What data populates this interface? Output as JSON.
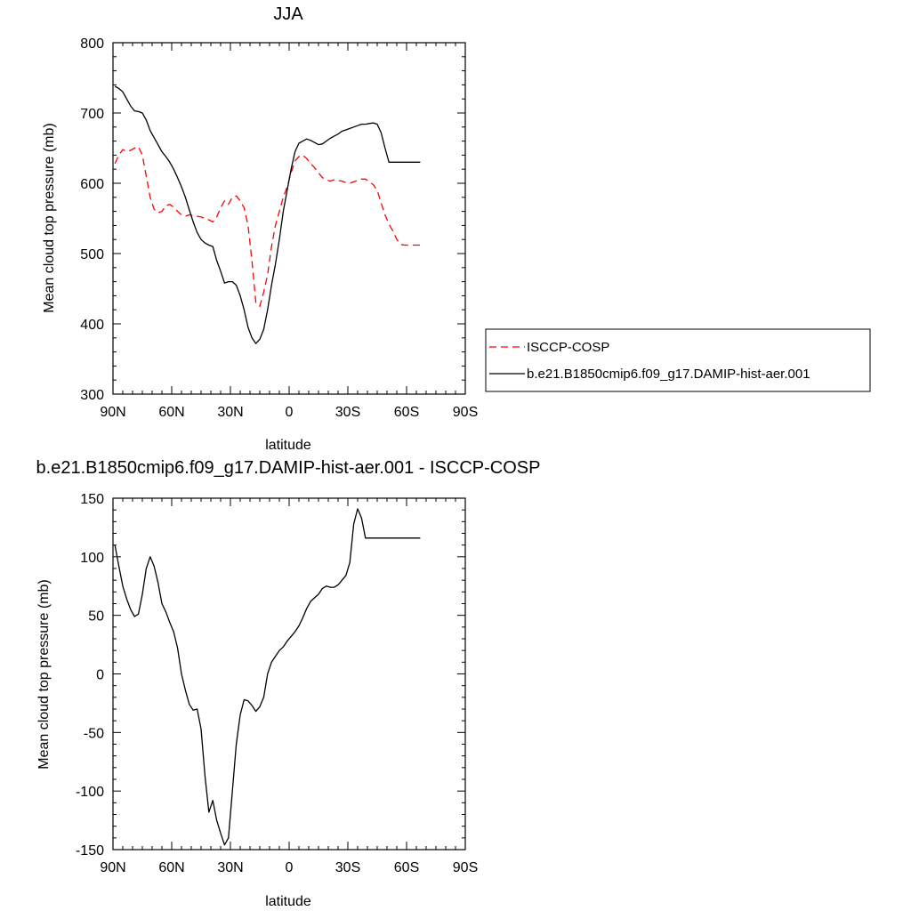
{
  "chart_data": [
    {
      "type": "line",
      "title": "JJA",
      "xlabel": "latitude",
      "ylabel": "Mean cloud top pressure (mb)",
      "xlim": [
        90,
        -90
      ],
      "ylim": [
        300,
        800
      ],
      "x_ticks": [
        90,
        60,
        30,
        0,
        -30,
        -60,
        -90
      ],
      "x_tick_labels": [
        "90N",
        "60N",
        "30N",
        "0",
        "30S",
        "60S",
        "90S"
      ],
      "y_ticks": [
        300,
        400,
        500,
        600,
        700,
        800
      ],
      "y_tick_labels": [
        "300",
        "400",
        "500",
        "600",
        "700",
        "800"
      ],
      "legend_position": "right",
      "series": [
        {
          "name": "ISCCP-COSP",
          "color": "#ff0000",
          "dash": "dashed",
          "x": [
            89,
            87,
            85,
            83,
            81,
            79,
            77,
            75,
            73,
            71,
            69,
            67,
            65,
            63,
            61,
            59,
            57,
            55,
            53,
            51,
            49,
            47,
            45,
            43,
            41,
            39,
            37,
            35,
            33,
            31,
            29,
            27,
            25,
            23,
            21,
            19,
            17,
            15,
            13,
            11,
            9,
            7,
            5,
            3,
            1,
            -1,
            -3,
            -5,
            -7,
            -9,
            -11,
            -13,
            -15,
            -17,
            -19,
            -21,
            -23,
            -25,
            -27,
            -29,
            -31,
            -33,
            -35,
            -37,
            -39,
            -41,
            -43,
            -45,
            -47,
            -49,
            -51,
            -53,
            -55,
            -57,
            -59,
            -61,
            -63,
            -65,
            -67
          ],
          "values": [
            628,
            640,
            648,
            645,
            647,
            650,
            652,
            640,
            610,
            580,
            563,
            558,
            560,
            568,
            570,
            566,
            560,
            555,
            553,
            555,
            554,
            553,
            552,
            550,
            548,
            545,
            552,
            565,
            575,
            570,
            580,
            582,
            575,
            565,
            540,
            490,
            430,
            425,
            445,
            470,
            510,
            540,
            560,
            580,
            595,
            615,
            632,
            638,
            640,
            635,
            628,
            622,
            615,
            608,
            605,
            603,
            605,
            604,
            603,
            601,
            600,
            602,
            604,
            606,
            606,
            602,
            598,
            590,
            572,
            555,
            542,
            532,
            520,
            513,
            512,
            512,
            512,
            512,
            512
          ]
        },
        {
          "name": "b.e21.B1850cmip6.f09_g17.DAMIP-hist-aer.001",
          "color": "#000000",
          "dash": "solid",
          "x": [
            89,
            87,
            85,
            83,
            81,
            79,
            77,
            75,
            73,
            71,
            69,
            67,
            65,
            63,
            61,
            59,
            57,
            55,
            53,
            51,
            49,
            47,
            45,
            43,
            41,
            39,
            37,
            35,
            33,
            31,
            29,
            27,
            25,
            23,
            21,
            19,
            17,
            15,
            13,
            11,
            9,
            7,
            5,
            3,
            1,
            -1,
            -3,
            -5,
            -7,
            -9,
            -11,
            -13,
            -15,
            -17,
            -19,
            -21,
            -23,
            -25,
            -27,
            -29,
            -31,
            -33,
            -35,
            -37,
            -39,
            -41,
            -43,
            -45,
            -47,
            -49,
            -51,
            -53,
            -55,
            -57,
            -59,
            -61,
            -63,
            -65,
            -67
          ],
          "values": [
            738,
            735,
            730,
            720,
            710,
            703,
            702,
            700,
            690,
            675,
            665,
            655,
            645,
            638,
            630,
            620,
            608,
            595,
            580,
            562,
            545,
            530,
            520,
            515,
            512,
            510,
            490,
            475,
            458,
            460,
            460,
            455,
            440,
            420,
            395,
            380,
            372,
            378,
            392,
            420,
            455,
            485,
            520,
            560,
            590,
            620,
            645,
            657,
            660,
            663,
            661,
            658,
            655,
            656,
            660,
            664,
            667,
            670,
            674,
            676,
            678,
            680,
            682,
            684,
            684,
            685,
            686,
            684,
            672,
            650,
            630,
            630,
            630,
            630,
            630,
            630,
            630,
            630,
            630
          ]
        }
      ]
    },
    {
      "type": "line",
      "title": "b.e21.B1850cmip6.f09_g17.DAMIP-hist-aer.001 - ISCCP-COSP",
      "xlabel": "latitude",
      "ylabel": "Mean cloud top pressure (mb)",
      "xlim": [
        90,
        -90
      ],
      "ylim": [
        -150,
        150
      ],
      "x_ticks": [
        90,
        60,
        30,
        0,
        -30,
        -60,
        -90
      ],
      "x_tick_labels": [
        "90N",
        "60N",
        "30N",
        "0",
        "30S",
        "60S",
        "90S"
      ],
      "y_ticks": [
        -150,
        -100,
        -50,
        0,
        50,
        100,
        150
      ],
      "y_tick_labels": [
        "-150",
        "-100",
        "-50",
        "0",
        "50",
        "100",
        "150"
      ],
      "series": [
        {
          "color": "#000000",
          "dash": "solid",
          "x": [
            89,
            87,
            85,
            83,
            81,
            79,
            77,
            75,
            73,
            71,
            69,
            67,
            65,
            63,
            61,
            59,
            57,
            55,
            53,
            51,
            49,
            47,
            45,
            43,
            41,
            39,
            37,
            35,
            33,
            31,
            29,
            27,
            25,
            23,
            21,
            19,
            17,
            15,
            13,
            11,
            9,
            7,
            5,
            3,
            1,
            -1,
            -3,
            -5,
            -7,
            -9,
            -11,
            -13,
            -15,
            -17,
            -19,
            -21,
            -23,
            -25,
            -27,
            -29,
            -31,
            -33,
            -35,
            -37,
            -39,
            -41,
            -43,
            -45,
            -47,
            -49,
            -51,
            -53,
            -55,
            -57,
            -59,
            -61,
            -63,
            -65,
            -67
          ],
          "values": [
            110,
            92,
            75,
            64,
            55,
            49,
            51,
            68,
            90,
            100,
            92,
            78,
            60,
            53,
            44,
            36,
            22,
            0,
            -14,
            -26,
            -31,
            -30,
            -47,
            -87,
            -118,
            -108,
            -125,
            -136,
            -146,
            -140,
            -100,
            -60,
            -35,
            -22,
            -23,
            -27,
            -32,
            -28,
            -20,
            0,
            10,
            15,
            20,
            23,
            28,
            32,
            36,
            41,
            48,
            56,
            62,
            65,
            68,
            73,
            75,
            74,
            74,
            76,
            80,
            84,
            95,
            128,
            141,
            133,
            116,
            116,
            116,
            116,
            116,
            116,
            116,
            116,
            116,
            116,
            116,
            116,
            116,
            116,
            116
          ]
        }
      ]
    }
  ]
}
